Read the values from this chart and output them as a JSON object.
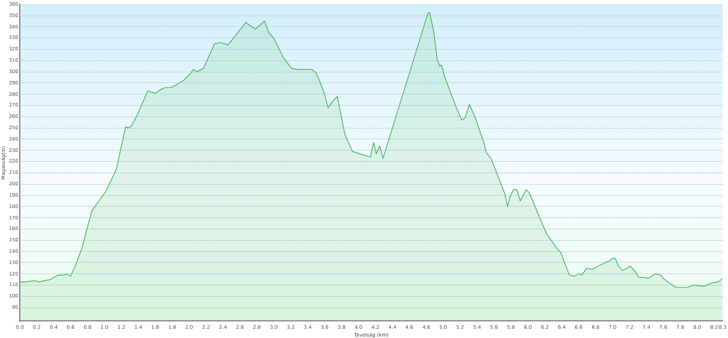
{
  "chart_data": {
    "type": "area",
    "xlabel": "Távolság (km)",
    "ylabel": "Magasság(m)",
    "xlim": [
      0,
      8.3
    ],
    "xticks": [
      {
        "value": 0,
        "label": "0.0"
      },
      {
        "value": 0.2,
        "label": "0.2"
      },
      {
        "value": 0.4,
        "label": "0.4"
      },
      {
        "value": 0.6,
        "label": "0.6"
      },
      {
        "value": 0.8,
        "label": "0.8"
      },
      {
        "value": 1,
        "label": "1.0"
      },
      {
        "value": 1.2,
        "label": "1.2"
      },
      {
        "value": 1.4,
        "label": "1.4"
      },
      {
        "value": 1.6,
        "label": "1.6"
      },
      {
        "value": 1.8,
        "label": "1.8"
      },
      {
        "value": 2,
        "label": "2.0"
      },
      {
        "value": 2.2,
        "label": "2.2"
      },
      {
        "value": 2.4,
        "label": "2.4"
      },
      {
        "value": 2.6,
        "label": "2.6"
      },
      {
        "value": 2.8,
        "label": "2.8"
      },
      {
        "value": 3,
        "label": "3.0"
      },
      {
        "value": 3.2,
        "label": "3.2"
      },
      {
        "value": 3.4,
        "label": "3.4"
      },
      {
        "value": 3.6,
        "label": "3.6"
      },
      {
        "value": 3.8,
        "label": "3.8"
      },
      {
        "value": 4,
        "label": "4.0"
      },
      {
        "value": 4.2,
        "label": "4.2"
      },
      {
        "value": 4.4,
        "label": "4.4"
      },
      {
        "value": 4.6,
        "label": "4.6"
      },
      {
        "value": 4.8,
        "label": "4.8"
      },
      {
        "value": 5,
        "label": "5.0"
      },
      {
        "value": 5.2,
        "label": "5.2"
      },
      {
        "value": 5.4,
        "label": "5.4"
      },
      {
        "value": 5.6,
        "label": "5.6"
      },
      {
        "value": 5.8,
        "label": "5.8"
      },
      {
        "value": 6,
        "label": "6.0"
      },
      {
        "value": 6.2,
        "label": "6.2"
      },
      {
        "value": 6.4,
        "label": "6.4"
      },
      {
        "value": 6.6,
        "label": "6.6"
      },
      {
        "value": 6.8,
        "label": "6.8"
      },
      {
        "value": 7,
        "label": "7.0"
      },
      {
        "value": 7.2,
        "label": "7.2"
      },
      {
        "value": 7.4,
        "label": "7.4"
      },
      {
        "value": 7.6,
        "label": "7.6"
      },
      {
        "value": 7.8,
        "label": "7.8"
      },
      {
        "value": 8,
        "label": "8.0"
      },
      {
        "value": 8.2,
        "label": "8.2"
      },
      {
        "value": 8.3,
        "label": "8.3"
      }
    ],
    "ylim": [
      78,
      360
    ],
    "yticks": [
      90,
      100,
      110,
      120,
      130,
      140,
      150,
      160,
      170,
      180,
      190,
      200,
      210,
      220,
      230,
      240,
      250,
      260,
      270,
      280,
      290,
      300,
      310,
      320,
      330,
      340,
      350,
      360
    ],
    "grid": "y",
    "legend": false,
    "marker": "none",
    "line_style": "solid",
    "series": [
      {
        "color": "#4cbb5a",
        "x": [
          0,
          0.07,
          0.17,
          0.23,
          0.36,
          0.4,
          0.46,
          0.52,
          0.55,
          0.6,
          0.66,
          0.73,
          0.85,
          1.02,
          1.14,
          1.25,
          1.28,
          1.32,
          1.39,
          1.51,
          1.6,
          1.66,
          1.72,
          1.79,
          1.84,
          1.93,
          2.01,
          2.05,
          2.09,
          2.17,
          2.3,
          2.36,
          2.42,
          2.46,
          2.67,
          2.78,
          2.89,
          2.94,
          3.0,
          3.11,
          3.21,
          3.29,
          3.45,
          3.5,
          3.54,
          3.6,
          3.64,
          3.71,
          3.75,
          3.84,
          3.9,
          3.93,
          4.06,
          4.14,
          4.18,
          4.21,
          4.25,
          4.29,
          4.82,
          4.84,
          4.89,
          4.93,
          4.96,
          4.98,
          5.02,
          5.16,
          5.22,
          5.26,
          5.31,
          5.38,
          5.48,
          5.51,
          5.57,
          5.73,
          5.76,
          5.79,
          5.83,
          5.87,
          5.91,
          5.98,
          6.02,
          6.14,
          6.22,
          6.35,
          6.39,
          6.49,
          6.55,
          6.6,
          6.64,
          6.69,
          6.76,
          6.83,
          6.97,
          7.0,
          7.03,
          7.07,
          7.12,
          7.17,
          7.21,
          7.27,
          7.31,
          7.38,
          7.42,
          7.5,
          7.57,
          7.6,
          7.67,
          7.75,
          7.81,
          7.88,
          7.96,
          8.08,
          8.17,
          8.25,
          8.3
        ],
        "values": [
          113,
          113,
          114,
          113,
          115,
          117,
          119,
          119,
          120,
          118,
          128,
          142,
          176,
          194,
          213,
          251,
          250,
          252,
          262,
          283,
          281,
          284,
          286,
          286,
          288,
          292,
          298,
          302,
          300,
          303,
          325,
          326,
          325,
          324,
          344,
          338,
          345,
          335,
          330,
          313,
          303,
          302,
          302,
          299,
          292,
          280,
          268,
          275,
          278,
          244,
          234,
          229,
          226,
          224,
          237,
          227,
          234,
          223,
          352,
          353,
          335,
          311,
          305,
          306,
          295,
          267,
          257,
          259,
          271,
          259,
          237,
          228,
          222,
          191,
          180,
          189,
          195,
          195,
          185,
          195,
          192,
          170,
          156,
          142,
          139,
          119,
          118,
          120,
          119,
          125,
          124,
          127,
          132,
          134,
          134,
          127,
          123,
          125,
          127,
          122,
          117,
          117,
          116,
          120,
          119,
          116,
          112,
          108,
          108,
          108,
          110,
          109,
          112,
          113,
          116
        ]
      }
    ]
  }
}
